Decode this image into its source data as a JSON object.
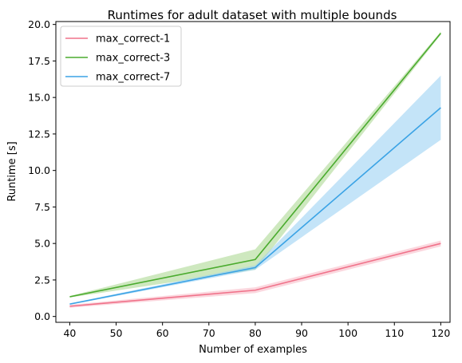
{
  "chart_data": {
    "type": "line",
    "title": "Runtimes for adult dataset with multiple bounds",
    "xlabel": "Number of examples",
    "ylabel": "Runtime [s]",
    "xlim": [
      37,
      122
    ],
    "ylim": [
      -0.4,
      20.2
    ],
    "xticks": [
      40,
      50,
      60,
      70,
      80,
      90,
      100,
      110,
      120
    ],
    "yticks": [
      0.0,
      2.5,
      5.0,
      7.5,
      10.0,
      12.5,
      15.0,
      17.5,
      20.0
    ],
    "ytick_labels": [
      "0.0",
      "2.5",
      "5.0",
      "7.5",
      "10.0",
      "12.5",
      "15.0",
      "17.5",
      "20.0"
    ],
    "grid": false,
    "legend_position": "top-left",
    "x": [
      40,
      80,
      120
    ],
    "series": [
      {
        "name": "max_correct-1",
        "color": "#f0728a",
        "band_color": "#f7b6c3",
        "values": [
          0.7,
          1.8,
          5.0
        ],
        "lower": [
          0.6,
          1.6,
          4.8
        ],
        "upper": [
          0.8,
          2.0,
          5.2
        ]
      },
      {
        "name": "max_correct-3",
        "color": "#4aab2e",
        "band_color": "#a6d68a",
        "values": [
          1.35,
          3.9,
          19.4
        ],
        "lower": [
          1.3,
          3.2,
          19.3
        ],
        "upper": [
          1.4,
          4.6,
          19.5
        ]
      },
      {
        "name": "max_correct-7",
        "color": "#3ba3e5",
        "band_color": "#94cdf3",
        "values": [
          0.85,
          3.35,
          14.3
        ],
        "lower": [
          0.8,
          3.2,
          12.1
        ],
        "upper": [
          0.9,
          3.5,
          16.5
        ]
      }
    ]
  }
}
